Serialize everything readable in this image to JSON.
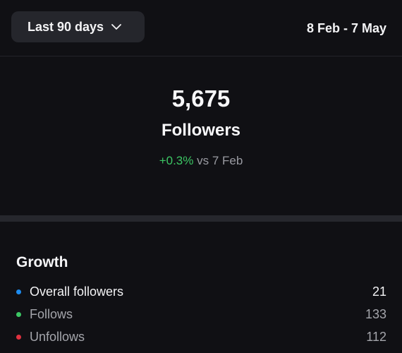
{
  "header": {
    "range_label": "Last 90 days",
    "date_range": "8 Feb - 7 May"
  },
  "summary": {
    "count": "5,675",
    "count_label": "Followers",
    "change_value": "+0.3%",
    "change_suffix": "vs 7 Feb"
  },
  "growth": {
    "title": "Growth",
    "rows": [
      {
        "label": "Overall followers",
        "value": "21",
        "dot_color": "#1d8cf0"
      },
      {
        "label": "Follows",
        "value": "133",
        "dot_color": "#3cc764"
      },
      {
        "label": "Unfollows",
        "value": "112",
        "dot_color": "#e0313f"
      }
    ]
  },
  "colors": {
    "background": "#101014",
    "positive": "#3cc764"
  },
  "icons": {
    "range_chevron": "chevron-down-icon"
  }
}
